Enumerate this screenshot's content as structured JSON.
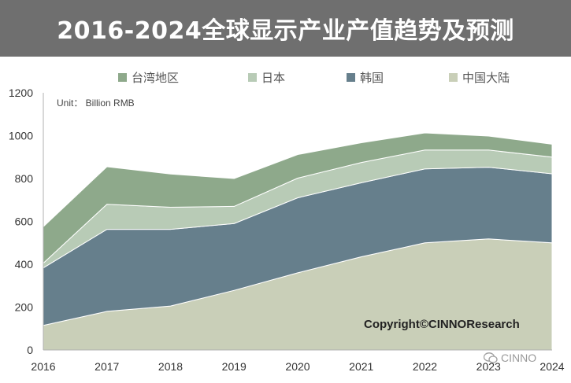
{
  "title": "2016-2024全球显示产业产值趋势及预测",
  "unit": "Unit： Billion RMB",
  "copyright": "Copyright©CINNOResearch",
  "watermark": "CINNO",
  "chart_data": {
    "type": "area",
    "stacked": true,
    "x": [
      "2016",
      "2017",
      "2018",
      "2019",
      "2020",
      "2021",
      "2022",
      "2023",
      "2024"
    ],
    "ylim": [
      0,
      1200
    ],
    "yticks": [
      0,
      200,
      400,
      600,
      800,
      1000,
      1200
    ],
    "legend_position": "top",
    "grid": false,
    "series": [
      {
        "name": "中国大陆",
        "color": "#c9cfb8",
        "values": [
          115,
          180,
          205,
          278,
          360,
          435,
          500,
          518,
          500
        ]
      },
      {
        "name": "韩国",
        "color": "#667f8c",
        "values": [
          268,
          383,
          358,
          312,
          350,
          345,
          345,
          335,
          322
        ]
      },
      {
        "name": "日本",
        "color": "#b8cbb6",
        "values": [
          22,
          117,
          103,
          80,
          92,
          95,
          88,
          80,
          78
        ]
      },
      {
        "name": "台湾地区",
        "color": "#8ea98b",
        "values": [
          170,
          175,
          155,
          130,
          110,
          92,
          80,
          65,
          60
        ]
      }
    ],
    "legend_order": [
      "台湾地区",
      "日本",
      "韩国",
      "中国大陆"
    ]
  }
}
